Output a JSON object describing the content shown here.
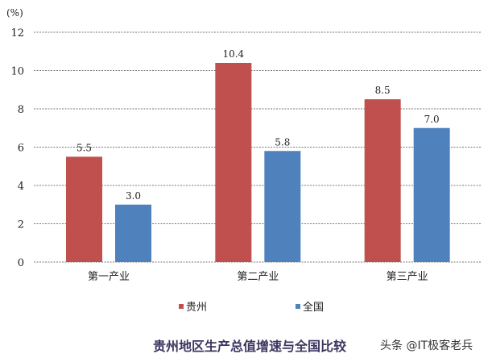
{
  "chart_data": {
    "type": "bar",
    "title": "贵州地区生产总值增速与全国比较",
    "ylabel": "(%)",
    "xlabel": "",
    "categories": [
      "第一产业",
      "第二产业",
      "第三产业"
    ],
    "series": [
      {
        "name": "贵州",
        "values": [
          5.5,
          10.4,
          8.5
        ],
        "color": "#c0504d"
      },
      {
        "name": "全国",
        "values": [
          3.0,
          5.8,
          7.0
        ],
        "color": "#4f81bd"
      }
    ],
    "ylim": [
      0,
      12
    ],
    "yticks": [
      0,
      2,
      4,
      6,
      8,
      10,
      12
    ],
    "grid": "horizontal dotted",
    "legend": "bottom",
    "data_labels": true
  },
  "watermark": "头条 @IT极客老兵"
}
